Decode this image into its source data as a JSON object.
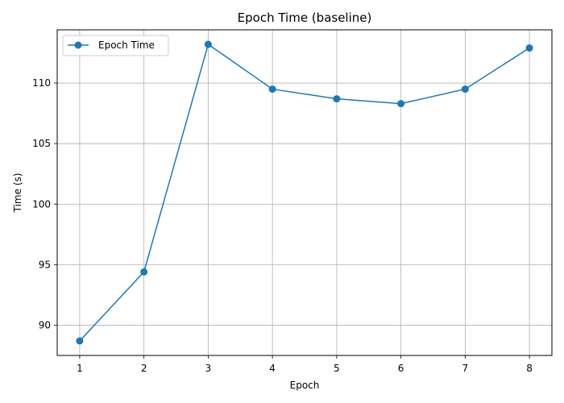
{
  "chart_data": {
    "type": "line",
    "title": "Epoch Time (baseline)",
    "xlabel": "Epoch",
    "ylabel": "Time (s)",
    "x": [
      1,
      2,
      3,
      4,
      5,
      6,
      7,
      8
    ],
    "series": [
      {
        "name": "Epoch Time",
        "values": [
          88.7,
          94.4,
          113.2,
          109.5,
          108.7,
          108.3,
          109.5,
          112.9
        ],
        "color": "#1f77b4",
        "marker": "circle"
      }
    ],
    "xticks": [
      1,
      2,
      3,
      4,
      5,
      6,
      7,
      8
    ],
    "yticks": [
      90,
      95,
      100,
      105,
      110
    ],
    "xlim": [
      0.65,
      8.35
    ],
    "ylim": [
      87.5,
      114.4
    ],
    "grid": true,
    "legend_position": "top-left"
  }
}
